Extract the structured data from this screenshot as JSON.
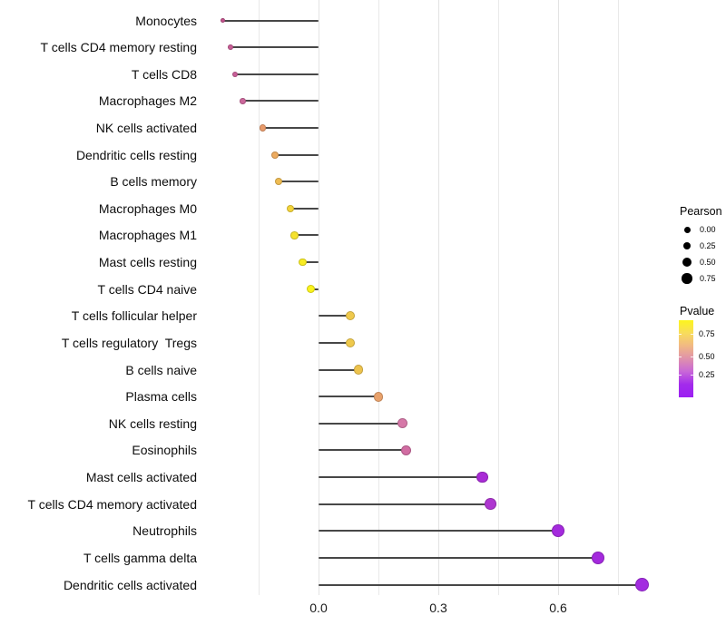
{
  "chart_data": {
    "type": "lollipop",
    "title": "",
    "xlabel": "",
    "ylabel": "",
    "xlim": [
      -0.293,
      0.863
    ],
    "x_ticks": [
      0.0,
      0.3,
      0.6
    ],
    "x_tick_labels": [
      "0.0",
      "0.3",
      "0.6"
    ],
    "gridlines_major": [
      0.0,
      0.3,
      0.6
    ],
    "gridlines_minor": [
      -0.15,
      0.15,
      0.45,
      0.75
    ],
    "grid": "on",
    "legend_position": "right",
    "size_legend": {
      "title": "Pearson",
      "labels": [
        "0.00",
        "0.25",
        "0.50",
        "0.75"
      ]
    },
    "color_legend": {
      "title": "Pvalue",
      "tick_labels": [
        "0.75",
        "0.50",
        "0.25"
      ],
      "gradient_stops": [
        "#FCF51D",
        "#F8DC5C",
        "#F1B884",
        "#DF91AC",
        "#C867D8",
        "#A32BEC",
        "#9C1FF2"
      ]
    },
    "points": [
      {
        "label": "Monocytes",
        "pearson": -0.24,
        "pvalue": 0.42,
        "color": "#C1538C"
      },
      {
        "label": "T cells CD4 memory resting",
        "pearson": -0.22,
        "pvalue": 0.44,
        "color": "#C75D95"
      },
      {
        "label": "T cells CD8",
        "pearson": -0.21,
        "pvalue": 0.45,
        "color": "#C95F98"
      },
      {
        "label": "Macrophages M2",
        "pearson": -0.19,
        "pvalue": 0.46,
        "color": "#CB679B"
      },
      {
        "label": "NK cells activated",
        "pearson": -0.14,
        "pvalue": 0.62,
        "color": "#E99B6B"
      },
      {
        "label": "Dendritic cells resting",
        "pearson": -0.11,
        "pvalue": 0.66,
        "color": "#EDAB5F"
      },
      {
        "label": "B cells memory",
        "pearson": -0.1,
        "pvalue": 0.7,
        "color": "#EFBC52"
      },
      {
        "label": "Macrophages M0",
        "pearson": -0.07,
        "pvalue": 0.78,
        "color": "#F4D53B"
      },
      {
        "label": "Macrophages M1",
        "pearson": -0.06,
        "pvalue": 0.82,
        "color": "#F5E22E"
      },
      {
        "label": "Mast cells resting",
        "pearson": -0.04,
        "pvalue": 0.86,
        "color": "#F8EC23"
      },
      {
        "label": "T cells CD4 naive",
        "pearson": -0.02,
        "pvalue": 0.9,
        "color": "#FAF31D"
      },
      {
        "label": "T cells follicular helper",
        "pearson": 0.08,
        "pvalue": 0.72,
        "color": "#EFC94C"
      },
      {
        "label": "T cells regulatory  Tregs",
        "pearson": 0.08,
        "pvalue": 0.72,
        "color": "#EFC94C"
      },
      {
        "label": "B cells naive",
        "pearson": 0.1,
        "pvalue": 0.71,
        "color": "#EDC34D"
      },
      {
        "label": "Plasma cells",
        "pearson": 0.15,
        "pvalue": 0.62,
        "color": "#E8A16B"
      },
      {
        "label": "NK cells resting",
        "pearson": 0.21,
        "pvalue": 0.47,
        "color": "#D678A8"
      },
      {
        "label": "Eosinophils",
        "pearson": 0.22,
        "pvalue": 0.45,
        "color": "#D16CA2"
      },
      {
        "label": "Mast cells activated",
        "pearson": 0.41,
        "pvalue": 0.06,
        "color": "#A92BD6"
      },
      {
        "label": "T cells CD4 memory activated",
        "pearson": 0.43,
        "pvalue": 0.09,
        "color": "#AE36D0"
      },
      {
        "label": "Neutrophils",
        "pearson": 0.6,
        "pvalue": 0.04,
        "color": "#A42ADD"
      },
      {
        "label": "T cells gamma delta",
        "pearson": 0.7,
        "pvalue": 0.03,
        "color": "#A42ADD"
      },
      {
        "label": "Dendritic cells activated",
        "pearson": 0.81,
        "pvalue": 0.02,
        "color": "#A32CE0"
      }
    ]
  },
  "colors": {
    "background": "#ffffff",
    "stem": "#474747",
    "gridline": "#e9e9e9",
    "axis_text": "#1a1a1a",
    "legend_dot": "#000000"
  }
}
